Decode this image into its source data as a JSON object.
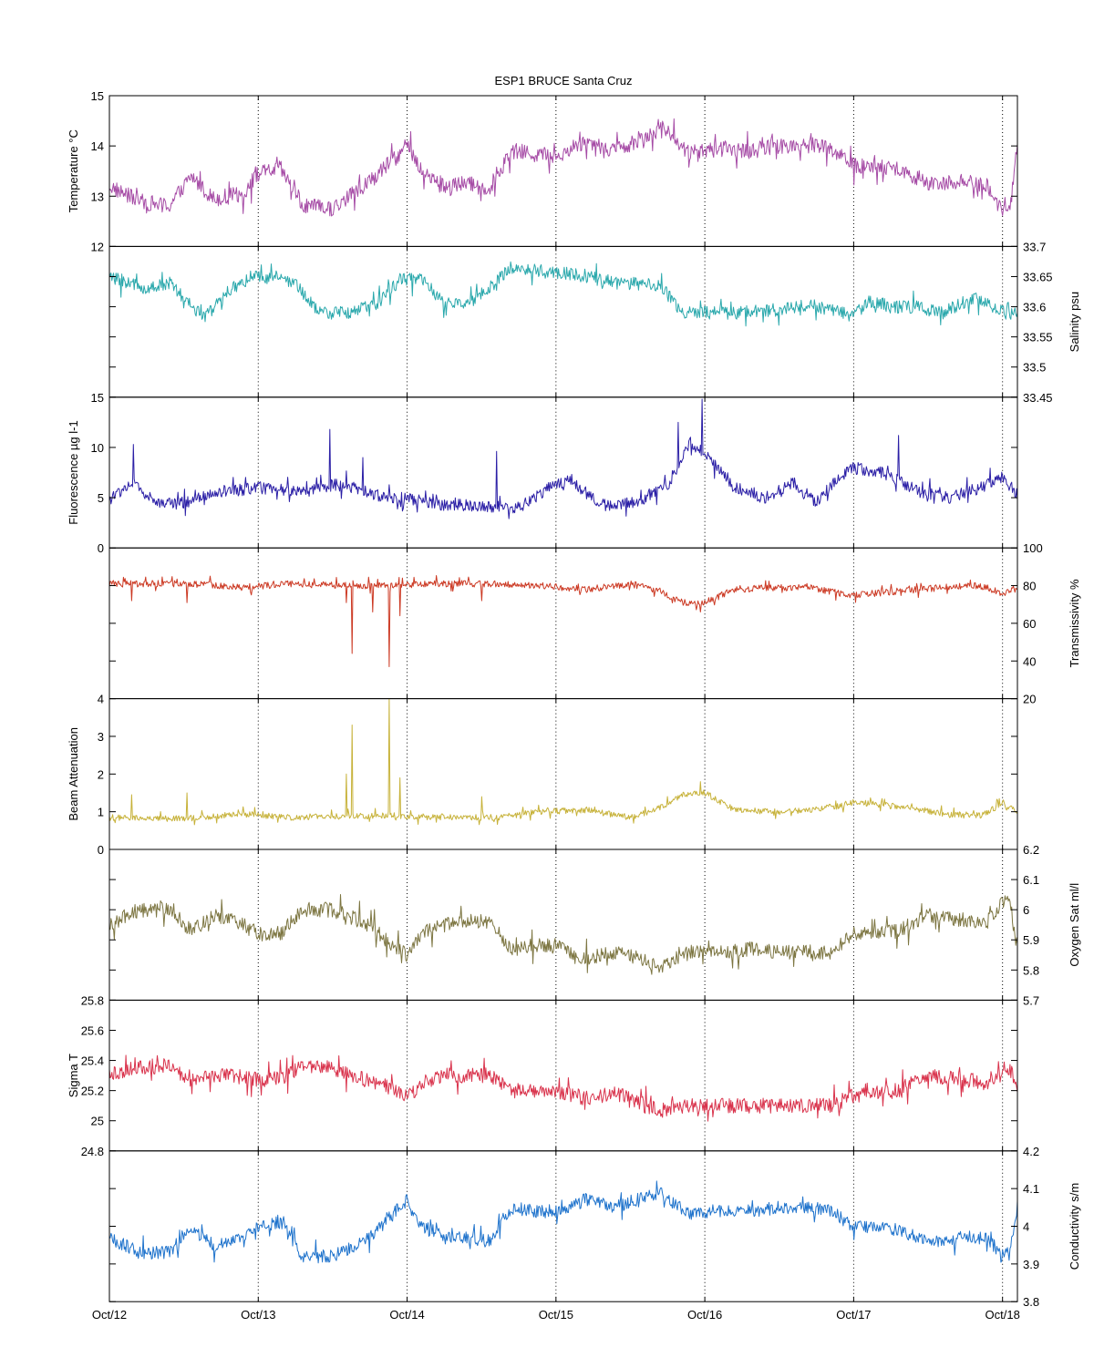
{
  "chart_data": {
    "type": "line",
    "title": "ESP1 BRUCE Santa Cruz",
    "x_tick_labels": [
      "Oct/12",
      "Oct/13",
      "Oct/14",
      "Oct/15",
      "Oct/16",
      "Oct/17",
      "Oct/18"
    ],
    "x_range_days": [
      12.0,
      18.1
    ],
    "grid": "vertical dotted lines at each day tick",
    "panels": [
      {
        "name": "Temperature °C",
        "ylabel": "Temperature °C",
        "axis_side": "left",
        "ylim": [
          12,
          15
        ],
        "ticks": [
          12,
          13,
          14,
          15
        ],
        "tick_labels": [
          "12",
          "13",
          "14",
          "15"
        ],
        "color": "#a64ca6",
        "series": {
          "x": [
            12.0,
            12.2,
            12.4,
            12.55,
            12.7,
            12.9,
            13.0,
            13.15,
            13.3,
            13.5,
            13.75,
            13.9,
            14.0,
            14.1,
            14.25,
            14.4,
            14.55,
            14.7,
            14.85,
            15.0,
            15.2,
            15.4,
            15.6,
            15.7,
            15.9,
            16.1,
            16.3,
            16.5,
            16.7,
            16.85,
            17.0,
            17.3,
            17.5,
            17.7,
            17.9,
            18.0,
            18.05,
            18.1
          ],
          "y": [
            13.2,
            12.9,
            12.8,
            13.4,
            12.95,
            13.05,
            13.45,
            13.55,
            12.8,
            12.75,
            13.3,
            13.7,
            14.0,
            13.5,
            13.2,
            13.25,
            13.15,
            13.9,
            13.85,
            13.8,
            14.1,
            13.9,
            14.2,
            14.4,
            13.85,
            13.95,
            13.9,
            14.0,
            14.05,
            13.95,
            13.6,
            13.55,
            13.25,
            13.3,
            13.2,
            12.7,
            12.8,
            13.9
          ]
        },
        "noise": 0.32
      },
      {
        "name": "Salinity psu",
        "ylabel": "Salinity psu",
        "axis_side": "right",
        "ylim": [
          33.45,
          33.7
        ],
        "ticks": [
          33.45,
          33.5,
          33.55,
          33.6,
          33.65,
          33.7
        ],
        "tick_labels": [
          "33.45",
          "33.5",
          "33.55",
          "33.6",
          "33.65",
          "33.7"
        ],
        "color": "#2aa8ac",
        "series": {
          "x": [
            12.0,
            12.25,
            12.4,
            12.55,
            12.65,
            12.8,
            12.95,
            13.1,
            13.25,
            13.4,
            13.6,
            13.8,
            13.95,
            14.1,
            14.25,
            14.4,
            14.55,
            14.7,
            14.9,
            15.1,
            15.4,
            15.7,
            15.85,
            16.0,
            16.2,
            16.5,
            16.7,
            16.85,
            17.0,
            17.1,
            17.25,
            17.4,
            17.6,
            17.8,
            17.95,
            18.05,
            18.1
          ],
          "y": [
            33.65,
            33.63,
            33.64,
            33.6,
            33.585,
            33.625,
            33.65,
            33.645,
            33.64,
            33.59,
            33.59,
            33.605,
            33.645,
            33.645,
            33.605,
            33.605,
            33.63,
            33.665,
            33.66,
            33.655,
            33.64,
            33.635,
            33.59,
            33.59,
            33.59,
            33.595,
            33.605,
            33.595,
            33.585,
            33.61,
            33.6,
            33.6,
            33.59,
            33.615,
            33.6,
            33.585,
            33.59
          ]
        },
        "noise": 0.022
      },
      {
        "name": "Fluorescence µg l-1",
        "ylabel": "Fluorescence µg l-1",
        "axis_side": "left",
        "ylim": [
          0,
          15
        ],
        "ticks": [
          0,
          5,
          10,
          15
        ],
        "tick_labels": [
          "0",
          "5",
          "10",
          "15"
        ],
        "color": "#2b1fa6",
        "series": {
          "x": [
            12.0,
            12.15,
            12.3,
            12.5,
            12.75,
            13.0,
            13.3,
            13.55,
            13.8,
            14.0,
            14.25,
            14.5,
            14.75,
            14.95,
            15.1,
            15.3,
            15.55,
            15.75,
            15.9,
            16.0,
            16.2,
            16.4,
            16.6,
            16.75,
            16.9,
            17.0,
            17.2,
            17.45,
            17.65,
            17.85,
            18.0,
            18.1
          ],
          "y": [
            4.8,
            6.5,
            4.6,
            4.5,
            5.5,
            6.0,
            5.6,
            6.4,
            5.2,
            4.9,
            4.3,
            4.2,
            4.0,
            6.0,
            6.8,
            4.2,
            4.6,
            6.2,
            10.5,
            9.5,
            6.0,
            5.0,
            6.5,
            4.5,
            7.0,
            8.0,
            7.5,
            5.5,
            5.0,
            6.0,
            7.0,
            5.3
          ]
        },
        "noise": 1.2,
        "spikes": [
          [
            12.16,
            10.3
          ],
          [
            13.48,
            11.8
          ],
          [
            13.7,
            9.0
          ],
          [
            14.6,
            9.6
          ],
          [
            15.82,
            12.5
          ],
          [
            15.98,
            14.8
          ],
          [
            17.3,
            11.2
          ]
        ]
      },
      {
        "name": "Transmissivity %",
        "ylabel": "Transmissivity %",
        "axis_side": "right",
        "ylim": [
          20,
          100
        ],
        "ticks": [
          20,
          40,
          60,
          80,
          100
        ],
        "tick_labels": [
          "20",
          "40",
          "60",
          "80",
          "100"
        ],
        "color": "#cc3a24",
        "series": {
          "x": [
            12.0,
            12.3,
            12.6,
            12.9,
            13.2,
            13.6,
            13.9,
            14.2,
            14.6,
            14.9,
            15.2,
            15.5,
            15.7,
            15.85,
            16.0,
            16.2,
            16.5,
            16.7,
            16.9,
            17.0,
            17.3,
            17.6,
            17.85,
            18.0,
            18.1
          ],
          "y": [
            81,
            81,
            81,
            79,
            81,
            80,
            80,
            81,
            81,
            80,
            78,
            81,
            77,
            71,
            71,
            78,
            79,
            79,
            76,
            75,
            77,
            79,
            80,
            76,
            78
          ]
        },
        "noise": 3.5,
        "spikes": [
          [
            12.15,
            72
          ],
          [
            12.52,
            71
          ],
          [
            13.59,
            71
          ],
          [
            13.63,
            44
          ],
          [
            13.77,
            66
          ],
          [
            13.88,
            37
          ],
          [
            13.95,
            64
          ],
          [
            14.5,
            72
          ],
          [
            15.97,
            66
          ]
        ]
      },
      {
        "name": "Beam Attenuation",
        "ylabel": "Beam Attenuation",
        "axis_side": "left",
        "ylim": [
          0,
          4
        ],
        "ticks": [
          0,
          1,
          2,
          3,
          4
        ],
        "tick_labels": [
          "0",
          "1",
          "2",
          "3",
          "4"
        ],
        "color": "#c7b23a",
        "series": {
          "x": [
            12.0,
            12.3,
            12.6,
            12.9,
            13.2,
            13.6,
            13.9,
            14.2,
            14.6,
            14.9,
            15.2,
            15.5,
            15.7,
            15.85,
            16.0,
            16.2,
            16.5,
            16.7,
            16.9,
            17.0,
            17.3,
            17.6,
            17.85,
            18.0,
            18.1
          ],
          "y": [
            0.85,
            0.8,
            0.85,
            0.95,
            0.85,
            0.88,
            0.9,
            0.85,
            0.85,
            1.0,
            1.05,
            0.85,
            1.1,
            1.45,
            1.5,
            1.05,
            1.0,
            1.05,
            1.15,
            1.25,
            1.15,
            0.95,
            0.9,
            1.2,
            1.0
          ]
        },
        "noise": 0.16,
        "spikes": [
          [
            12.15,
            1.45
          ],
          [
            12.52,
            1.5
          ],
          [
            13.59,
            2.0
          ],
          [
            13.63,
            3.3
          ],
          [
            13.88,
            4.0
          ],
          [
            13.95,
            1.9
          ],
          [
            14.5,
            1.4
          ],
          [
            15.97,
            1.8
          ]
        ]
      },
      {
        "name": "Oxygen Sat ml/l",
        "ylabel": "Oxygen Sat ml/l",
        "axis_side": "right",
        "ylim": [
          5.7,
          6.2
        ],
        "ticks": [
          5.7,
          5.8,
          5.9,
          6.0,
          6.1,
          6.2
        ],
        "tick_labels": [
          "5.7",
          "5.8",
          "5.9",
          "6",
          "6.1",
          "6.2"
        ],
        "color": "#7d7642",
        "series": {
          "x": [
            12.0,
            12.2,
            12.4,
            12.55,
            12.7,
            12.9,
            13.0,
            13.15,
            13.3,
            13.5,
            13.75,
            13.9,
            14.0,
            14.1,
            14.25,
            14.4,
            14.55,
            14.7,
            14.85,
            15.0,
            15.2,
            15.4,
            15.6,
            15.7,
            15.9,
            16.1,
            16.3,
            16.5,
            16.7,
            16.85,
            17.0,
            17.3,
            17.5,
            17.7,
            17.9,
            18.0,
            18.05,
            18.1
          ],
          "y": [
            5.95,
            6.0,
            6.0,
            5.93,
            5.98,
            5.95,
            5.92,
            5.92,
            6.0,
            6.0,
            5.95,
            5.88,
            5.85,
            5.93,
            5.95,
            5.96,
            5.96,
            5.87,
            5.88,
            5.88,
            5.84,
            5.86,
            5.83,
            5.81,
            5.86,
            5.86,
            5.87,
            5.86,
            5.86,
            5.86,
            5.92,
            5.93,
            5.98,
            5.97,
            5.96,
            6.03,
            6.02,
            5.87
          ]
        },
        "noise": 0.05
      },
      {
        "name": "Sigma T",
        "ylabel": "Sigma T",
        "axis_side": "left",
        "ylim": [
          24.8,
          25.8
        ],
        "ticks": [
          24.8,
          25.0,
          25.2,
          25.4,
          25.6,
          25.8
        ],
        "tick_labels": [
          "24.8",
          "25",
          "25.2",
          "25.4",
          "25.6",
          "25.8"
        ],
        "color": "#d9334c",
        "series": {
          "x": [
            12.0,
            12.2,
            12.4,
            12.55,
            12.7,
            12.9,
            13.0,
            13.15,
            13.3,
            13.5,
            13.75,
            13.9,
            14.0,
            14.1,
            14.25,
            14.4,
            14.55,
            14.7,
            14.85,
            15.0,
            15.2,
            15.4,
            15.6,
            15.7,
            15.9,
            16.1,
            16.3,
            16.5,
            16.7,
            16.85,
            17.0,
            17.3,
            17.5,
            17.7,
            17.9,
            18.0,
            18.05,
            18.1
          ],
          "y": [
            25.3,
            25.36,
            25.36,
            25.27,
            25.3,
            25.29,
            25.27,
            25.28,
            25.36,
            25.35,
            25.26,
            25.22,
            25.15,
            25.25,
            25.3,
            25.3,
            25.3,
            25.2,
            25.2,
            25.2,
            25.15,
            25.18,
            25.1,
            25.07,
            25.1,
            25.1,
            25.1,
            25.1,
            25.1,
            25.1,
            25.17,
            25.2,
            25.3,
            25.28,
            25.25,
            25.35,
            25.35,
            25.2
          ]
        },
        "noise": 0.1
      },
      {
        "name": "Conductivity s/m",
        "ylabel": "Conductivity s/m",
        "axis_side": "right",
        "ylim": [
          3.8,
          4.2
        ],
        "ticks": [
          3.8,
          3.9,
          4.0,
          4.1,
          4.2
        ],
        "tick_labels": [
          "3.8",
          "3.9",
          "4",
          "4.1",
          "4.2"
        ],
        "color": "#1f73cc",
        "series": {
          "x": [
            12.0,
            12.2,
            12.4,
            12.55,
            12.7,
            12.9,
            13.0,
            13.15,
            13.3,
            13.5,
            13.75,
            13.9,
            14.0,
            14.1,
            14.25,
            14.4,
            14.55,
            14.7,
            14.85,
            15.0,
            15.2,
            15.4,
            15.6,
            15.7,
            15.9,
            16.1,
            16.3,
            16.5,
            16.7,
            16.85,
            17.0,
            17.3,
            17.5,
            17.7,
            17.9,
            18.0,
            18.05,
            18.1
          ],
          "y": [
            3.97,
            3.93,
            3.93,
            4.0,
            3.95,
            3.97,
            4.0,
            4.01,
            3.92,
            3.92,
            3.97,
            4.03,
            4.07,
            4.0,
            3.97,
            3.97,
            3.96,
            4.05,
            4.04,
            4.04,
            4.07,
            4.05,
            4.08,
            4.09,
            4.03,
            4.04,
            4.04,
            4.05,
            4.05,
            4.04,
            4.0,
            3.99,
            3.96,
            3.97,
            3.97,
            3.92,
            3.93,
            4.05
          ]
        },
        "noise": 0.035
      }
    ]
  }
}
